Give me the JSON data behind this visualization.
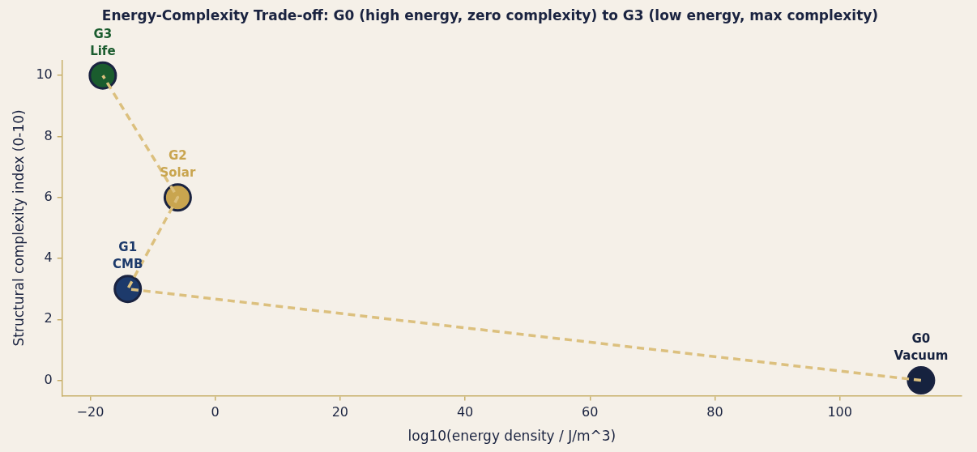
{
  "chart_data": {
    "type": "scatter",
    "title": "Energy-Complexity Trade-off: G0 (high energy, zero complexity) to G3 (low energy, max complexity)",
    "xlabel": "log10(energy density / J/m^3)",
    "ylabel": "Structural complexity index (0-10)",
    "xlim": [
      -24.5,
      119.5
    ],
    "ylim": [
      -0.5,
      10.5
    ],
    "xticks": [
      -20,
      0,
      20,
      40,
      60,
      80,
      100
    ],
    "yticks": [
      0,
      2,
      4,
      6,
      8,
      10
    ],
    "grid": false,
    "legend": false,
    "marker": "circle",
    "series": [
      {
        "type": "line",
        "color": "#dcc07e",
        "line_style": "dashed",
        "marker": "none",
        "x": [
          113,
          -14,
          -6,
          -18
        ],
        "values": [
          0,
          3,
          6,
          10
        ]
      },
      {
        "name": "G0\nVacuum",
        "color": "#16223f",
        "x": [
          113
        ],
        "values": [
          0
        ]
      },
      {
        "name": "G1\nCMB",
        "color": "#1d3a6b",
        "x": [
          -14
        ],
        "values": [
          3
        ]
      },
      {
        "name": "G2\nSolar",
        "color": "#c9a54f",
        "x": [
          -6
        ],
        "values": [
          6
        ]
      },
      {
        "name": "G3\nLife",
        "color": "#1a5c2e",
        "x": [
          -18
        ],
        "values": [
          10
        ]
      }
    ]
  }
}
